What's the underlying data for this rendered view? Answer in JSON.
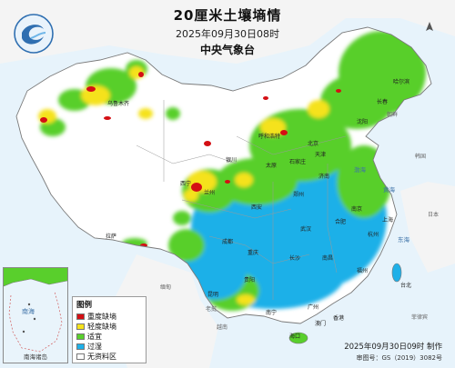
{
  "title": "20厘米土壤墒情",
  "date_line": "2025年09月30日08时",
  "issuer": "中央气象台",
  "legend": {
    "title": "图例",
    "items": [
      {
        "label": "重度缺墒",
        "color": "#d40f14"
      },
      {
        "label": "轻度缺墒",
        "color": "#f5e21c"
      },
      {
        "label": "适宜",
        "color": "#59cf2c"
      },
      {
        "label": "过湿",
        "color": "#1fb0e8"
      },
      {
        "label": "无资料区",
        "color": "#ffffff"
      }
    ]
  },
  "inset_label": "南海诸岛",
  "inset_sea": "南海",
  "footer": {
    "time": "2025年09月30日09时 制作",
    "approval": "审图号：GS（2019）3082号"
  },
  "seas": [
    "渤海",
    "黄海",
    "东海",
    "南海"
  ],
  "neighbors": [
    "朝鲜",
    "韩国",
    "日本",
    "菲律宾",
    "越南",
    "老挝",
    "缅甸"
  ],
  "cities": [
    "哈尔滨",
    "长春",
    "沈阳",
    "北京",
    "天津",
    "石家庄",
    "太原",
    "济南",
    "郑州",
    "西安",
    "兰州",
    "西宁",
    "银川",
    "呼和浩特",
    "乌鲁木齐",
    "拉萨",
    "成都",
    "重庆",
    "贵阳",
    "昆明",
    "南宁",
    "广州",
    "福州",
    "南昌",
    "长沙",
    "武汉",
    "合肥",
    "南京",
    "上海",
    "杭州",
    "台北",
    "海口",
    "香港",
    "澳门"
  ]
}
